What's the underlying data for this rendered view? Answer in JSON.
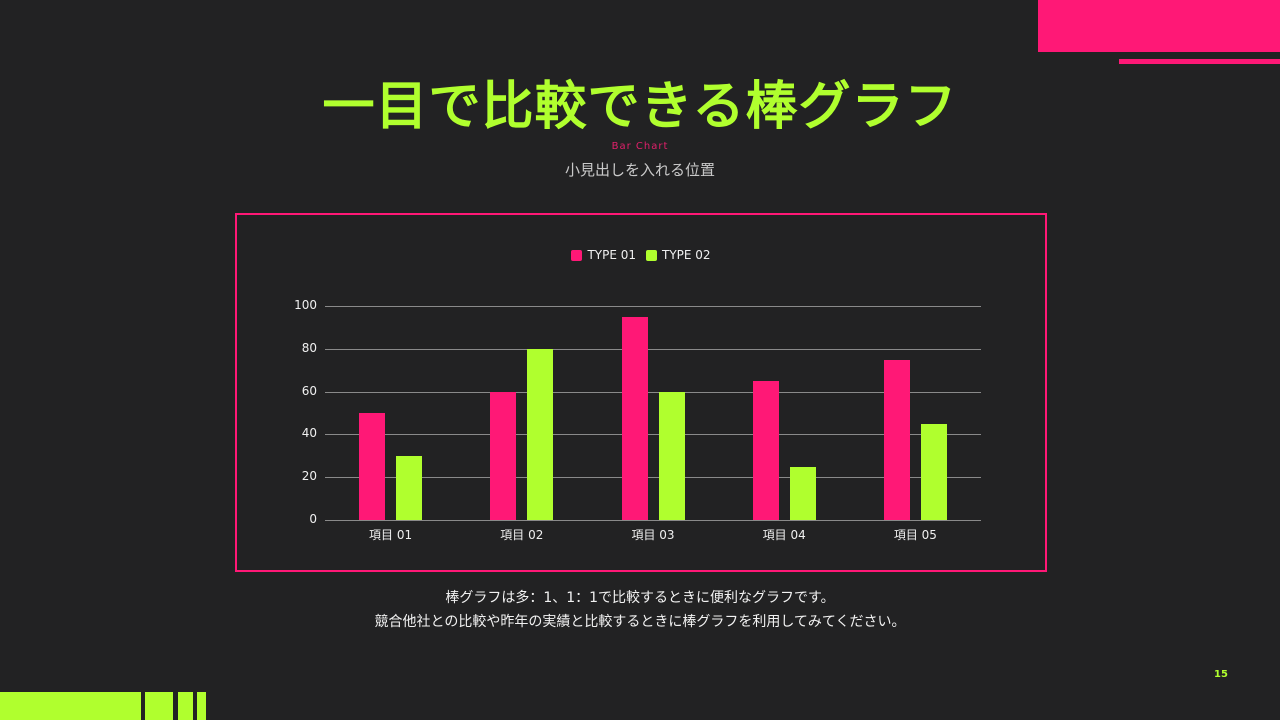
{
  "slide": {
    "title": "一目で比較できる棒グラフ",
    "eyebrow": "Bar Chart",
    "subtitle": "小見出しを入れる位置",
    "captions": [
      "棒グラフは多：1、1：1で比較するときに便利なグラフです。",
      "競合他社との比較や昨年の実績と比較するときに棒グラフを利用してみてください。"
    ],
    "page_number": "15"
  },
  "colors": {
    "background": "#222223",
    "accent_pink": "#ff1876",
    "accent_green": "#b0ff2e"
  },
  "legend": [
    {
      "label": "TYPE 01",
      "color": "#ff1876"
    },
    {
      "label": "TYPE 02",
      "color": "#b0ff2e"
    }
  ],
  "chart_data": {
    "type": "bar",
    "title": "",
    "xlabel": "",
    "ylabel": "",
    "categories": [
      "項目 01",
      "項目 02",
      "項目 03",
      "項目 04",
      "項目 05"
    ],
    "series": [
      {
        "name": "TYPE 01",
        "color": "#ff1876",
        "values": [
          50,
          60,
          95,
          65,
          75
        ]
      },
      {
        "name": "TYPE 02",
        "color": "#b0ff2e",
        "values": [
          30,
          80,
          60,
          25,
          45
        ]
      }
    ],
    "ylim": [
      0,
      100
    ],
    "yticks": [
      0,
      20,
      40,
      60,
      80,
      100
    ],
    "grid": true,
    "legend_position": "top"
  }
}
